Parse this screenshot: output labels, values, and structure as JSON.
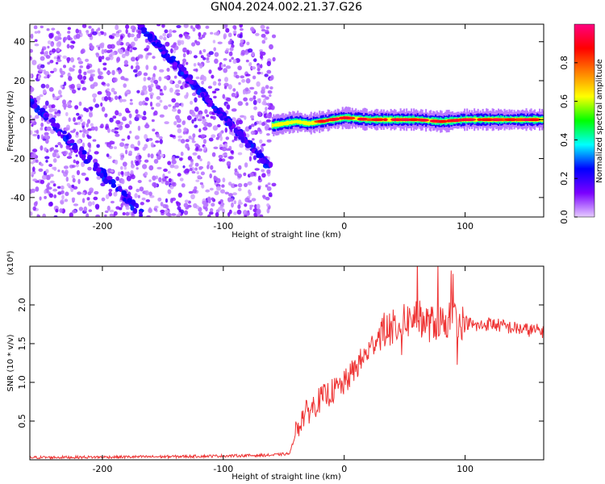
{
  "figure": {
    "title": "GN04.2024.002.21.37.G26"
  },
  "chart_data": [
    {
      "type": "heatmap",
      "xlabel": "Height of straight line (km)",
      "ylabel": "Frequency (Hz)",
      "xlim": [
        -260,
        165
      ],
      "ylim": [
        -50,
        49
      ],
      "x_ticks": [
        -200,
        -100,
        0,
        100
      ],
      "y_ticks": [
        -40,
        -20,
        0,
        20,
        40
      ],
      "colorbar": {
        "label": "Normalized spectral amplitude",
        "range": [
          0.0,
          1.0
        ],
        "ticks": [
          0.0,
          0.2,
          0.4,
          0.6,
          0.8
        ],
        "colors": [
          "#e6ccff",
          "#7a00ff",
          "#0000ff",
          "#00ffff",
          "#00ff00",
          "#ffff00",
          "#ff8000",
          "#ff0000",
          "#ff0080"
        ]
      },
      "features": {
        "noise_region_x": [
          -260,
          -58
        ],
        "signal_track": {
          "x": [
            -60,
            -50,
            -40,
            -30,
            -20,
            -10,
            0,
            20,
            40,
            60,
            80,
            100,
            120,
            140,
            165
          ],
          "freq": [
            -3,
            -2,
            -1,
            -2,
            -1,
            0,
            1,
            0,
            0,
            0,
            -1,
            0,
            0,
            0,
            0
          ]
        },
        "descending_streak_1": {
          "x": [
            -170,
            -60
          ],
          "freq": [
            49,
            -25
          ]
        },
        "descending_streak_2": {
          "x": [
            -260,
            -165
          ],
          "freq": [
            10,
            -50
          ]
        }
      }
    },
    {
      "type": "line",
      "xlabel": "Height of straight line (km)",
      "ylabel": "SNR (10 * v/v)",
      "y_multiplier": "(x10⁴)",
      "xlim": [
        -260,
        165
      ],
      "ylim": [
        0,
        25000
      ],
      "x_ticks": [
        -200,
        -100,
        0,
        100
      ],
      "y_ticks": [
        0.5,
        1.0,
        1.5,
        2.0
      ],
      "color": "#ee3333",
      "series": [
        {
          "x": [
            -260,
            -200,
            -150,
            -100,
            -60,
            -45,
            -40,
            -35,
            -30,
            -20,
            -10,
            0,
            10,
            20,
            30,
            40,
            50,
            60,
            70,
            80,
            90,
            100,
            110,
            120,
            130,
            140,
            150,
            165
          ],
          "values": [
            300,
            350,
            400,
            500,
            600,
            800,
            3500,
            5500,
            6200,
            7800,
            8800,
            9800,
            12000,
            14000,
            16500,
            17000,
            17800,
            18500,
            17500,
            17800,
            18200,
            17800,
            17200,
            17600,
            17300,
            17000,
            16800,
            16600
          ]
        }
      ]
    }
  ]
}
